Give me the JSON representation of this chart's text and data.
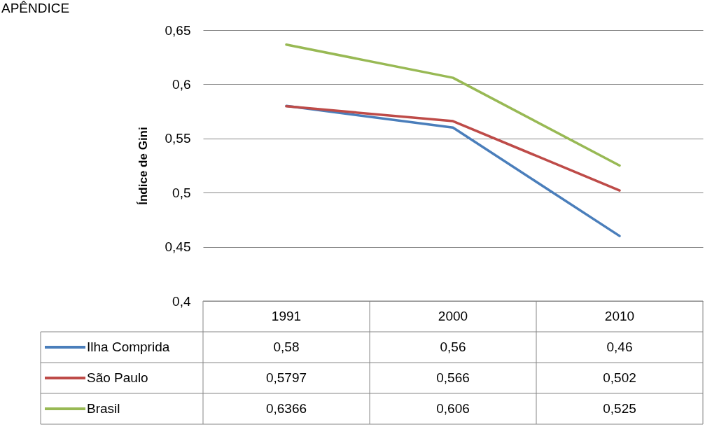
{
  "chart_data": {
    "type": "line",
    "annotations": [
      "APÊNDICE"
    ],
    "ylabel": "Índice de Gini",
    "categories": [
      "1991",
      "2000",
      "2010"
    ],
    "series": [
      {
        "name": "Ilha Comprida",
        "color": "#4a7ebb",
        "values": [
          0.58,
          0.56,
          0.46
        ],
        "value_labels": [
          "0,58",
          "0,56",
          "0,46"
        ]
      },
      {
        "name": "São Paulo",
        "color": "#be4b48",
        "values": [
          0.5797,
          0.566,
          0.502
        ],
        "value_labels": [
          "0,5797",
          "0,566",
          "0,502"
        ]
      },
      {
        "name": "Brasil",
        "color": "#98b954",
        "values": [
          0.6366,
          0.606,
          0.525
        ],
        "value_labels": [
          "0,6366",
          "0,606",
          "0,525"
        ]
      }
    ],
    "ylim": [
      0.4,
      0.65
    ],
    "yticks": [
      {
        "value": 0.4,
        "label": "0,4"
      },
      {
        "value": 0.45,
        "label": "0,45"
      },
      {
        "value": 0.5,
        "label": "0,5"
      },
      {
        "value": 0.55,
        "label": "0,55"
      },
      {
        "value": 0.6,
        "label": "0,6"
      },
      {
        "value": 0.65,
        "label": "0,65"
      }
    ],
    "grid": "y",
    "legend": "bottom"
  }
}
